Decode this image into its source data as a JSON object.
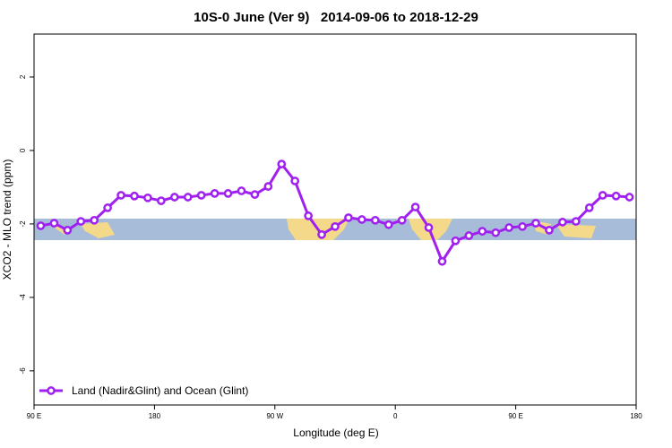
{
  "chart_data": {
    "type": "line",
    "title": "10S-0 June (Ver 9)   2014-09-06 to 2018-12-29",
    "x_label": "Longitude (deg E)",
    "y_label": "XCO2 - MLO trend (ppm)",
    "xlim": [
      90,
      540
    ],
    "ylim": [
      -6.93,
      3.17
    ],
    "xticks": [
      {
        "value": 90,
        "label": "90 E"
      },
      180,
      {
        "value": 270,
        "label": "90 W"
      },
      {
        "value": 360,
        "label": "0"
      },
      {
        "value": 450,
        "label": "90 E"
      },
      {
        "value": 540,
        "label": "180"
      }
    ],
    "yticks": [
      -6,
      -4,
      -2,
      0,
      2
    ],
    "legend": "bottom-left",
    "series": [
      {
        "name": "Land (Nadir&Glint) and Ocean (Glint)",
        "color": "#a020f0",
        "x": [
          95,
          105,
          115,
          125,
          135,
          145,
          155,
          165,
          175,
          185,
          195,
          205,
          215,
          225,
          235,
          245,
          255,
          265,
          275,
          285,
          295,
          305,
          315,
          325,
          335,
          345,
          355,
          365,
          375,
          385,
          395,
          405,
          415,
          425,
          435,
          445,
          455,
          465,
          475,
          485,
          495,
          505,
          515,
          525,
          535
        ],
        "values": [
          -2.05,
          -1.98,
          -2.17,
          -1.93,
          -1.9,
          -1.56,
          -1.22,
          -1.24,
          -1.29,
          -1.37,
          -1.27,
          -1.27,
          -1.22,
          -1.17,
          -1.17,
          -1.1,
          -1.2,
          -0.98,
          -0.37,
          -0.83,
          -1.78,
          -2.29,
          -2.07,
          -1.83,
          -1.88,
          -1.9,
          -2.02,
          -1.9,
          -1.54,
          -2.1,
          -3.02,
          -2.46,
          -2.32,
          -2.2,
          -2.24,
          -2.1,
          -2.07,
          -1.98,
          -2.17,
          -1.95,
          -1.93,
          -1.56,
          -1.22,
          -1.24,
          -1.27
        ]
      }
    ]
  }
}
